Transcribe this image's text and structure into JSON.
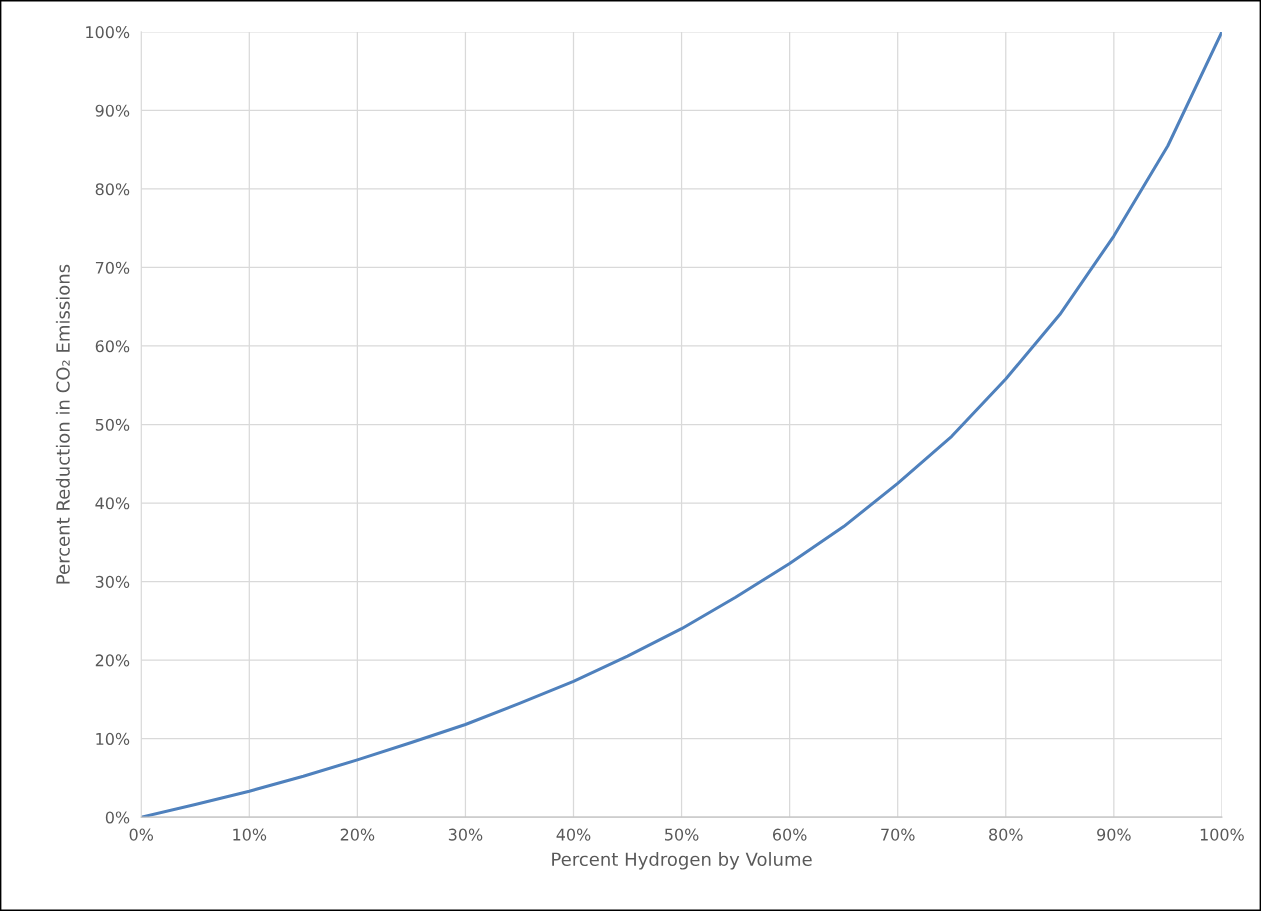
{
  "chart_data": {
    "type": "line",
    "xlabel": "Percent Hydrogen by Volume",
    "ylabel": "Percent Reduction in CO₂ Emissions",
    "x": [
      0,
      5,
      10,
      15,
      20,
      25,
      30,
      35,
      40,
      45,
      50,
      55,
      60,
      65,
      70,
      75,
      80,
      85,
      90,
      95,
      100
    ],
    "series": [
      {
        "color": "#4f81bd",
        "values": [
          0,
          1.6,
          3.3,
          5.2,
          7.3,
          9.5,
          11.8,
          14.5,
          17.3,
          20.5,
          24,
          28,
          32.3,
          37,
          42.5,
          48.5,
          55.8,
          64,
          74,
          85.5,
          100
        ]
      }
    ],
    "xlim": [
      0,
      100
    ],
    "ylim": [
      0,
      100
    ],
    "xticks": [
      {
        "value": 0,
        "label": "0%"
      },
      {
        "value": 10,
        "label": "10%"
      },
      {
        "value": 20,
        "label": "20%"
      },
      {
        "value": 30,
        "label": "30%"
      },
      {
        "value": 40,
        "label": "40%"
      },
      {
        "value": 50,
        "label": "50%"
      },
      {
        "value": 60,
        "label": "60%"
      },
      {
        "value": 70,
        "label": "70%"
      },
      {
        "value": 80,
        "label": "80%"
      },
      {
        "value": 90,
        "label": "90%"
      },
      {
        "value": 100,
        "label": "100%"
      }
    ],
    "yticks": [
      {
        "value": 0,
        "label": "0%"
      },
      {
        "value": 10,
        "label": "10%"
      },
      {
        "value": 20,
        "label": "20%"
      },
      {
        "value": 30,
        "label": "30%"
      },
      {
        "value": 40,
        "label": "40%"
      },
      {
        "value": 50,
        "label": "50%"
      },
      {
        "value": 60,
        "label": "60%"
      },
      {
        "value": 70,
        "label": "70%"
      },
      {
        "value": 80,
        "label": "80%"
      },
      {
        "value": 90,
        "label": "90%"
      },
      {
        "value": 100,
        "label": "100%"
      }
    ],
    "grid": true,
    "line_style": "solid"
  }
}
